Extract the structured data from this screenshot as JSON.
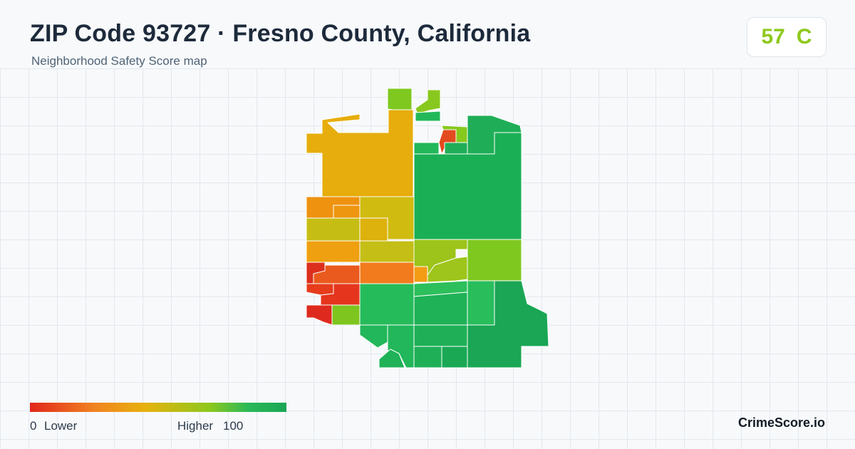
{
  "header": {
    "title": "ZIP Code 93727 · Fresno County, California",
    "subtitle": "Neighborhood Safety Score map"
  },
  "score": {
    "value": "57",
    "grade": "C",
    "color": "#8ec81c"
  },
  "legend": {
    "min_value": "0",
    "min_label": "Lower",
    "max_label": "Higher",
    "max_value": "100",
    "colors": [
      "#e1261c",
      "#f18320",
      "#e7b20e",
      "#8ec81c",
      "#2ab957",
      "#1aa655"
    ]
  },
  "brand": "CrimeScore.io"
}
